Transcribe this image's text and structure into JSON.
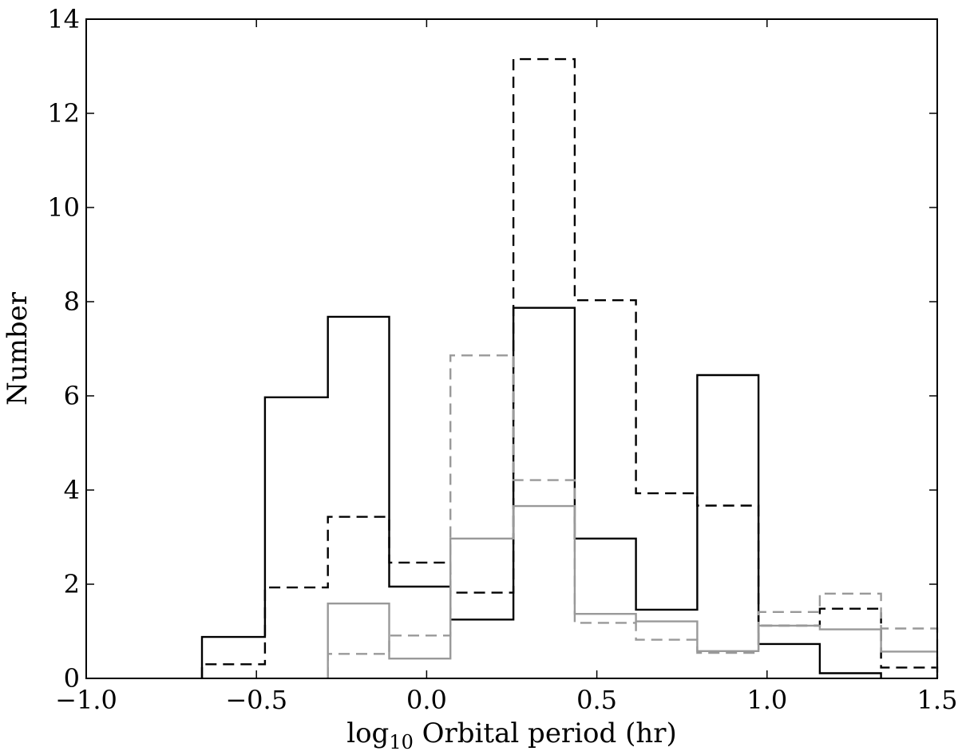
{
  "chart_data": {
    "type": "histogram",
    "xlabel": {
      "prefix": "log",
      "subscript": "10",
      "suffix": " Orbital period (hr)"
    },
    "ylabel": "Number",
    "xlim": [
      -1.0,
      1.5
    ],
    "ylim": [
      0,
      14
    ],
    "x_ticks": [
      -1.0,
      -0.5,
      0.0,
      0.5,
      1.0,
      1.5
    ],
    "x_tick_labels": [
      "−1.0",
      "−0.5",
      "0.0",
      "0.5",
      "1.0",
      "1.5"
    ],
    "y_ticks": [
      0,
      2,
      4,
      6,
      8,
      10,
      12,
      14
    ],
    "y_tick_labels": [
      "0",
      "2",
      "4",
      "6",
      "8",
      "10",
      "12",
      "14"
    ],
    "grid": false,
    "series": [
      {
        "color": "#000000",
        "style": "solid",
        "bin_edges": [
          -0.66,
          -0.475,
          -0.29,
          -0.11,
          0.07,
          0.255,
          0.435,
          0.615,
          0.795,
          0.975,
          1.155,
          1.335
        ],
        "values": [
          0.88,
          5.97,
          7.68,
          1.95,
          1.25,
          7.87,
          2.97,
          1.46,
          6.44,
          0.73,
          0.11
        ]
      },
      {
        "color": "#000000",
        "style": "dashed",
        "bin_edges": [
          -0.66,
          -0.475,
          -0.29,
          -0.11,
          0.07,
          0.255,
          0.435,
          0.615,
          0.795,
          0.975,
          1.155,
          1.335,
          1.5
        ],
        "values": [
          0.3,
          1.93,
          3.43,
          2.46,
          1.82,
          13.15,
          8.03,
          3.93,
          3.67,
          1.12,
          1.48,
          0.23
        ]
      },
      {
        "color": "#999999",
        "style": "solid",
        "bin_edges": [
          -0.29,
          -0.11,
          0.07,
          0.255,
          0.435,
          0.615,
          0.795,
          0.975,
          1.155,
          1.335,
          1.5
        ],
        "values": [
          1.59,
          0.42,
          2.97,
          3.66,
          1.37,
          1.21,
          0.58,
          1.12,
          1.04,
          0.57
        ]
      },
      {
        "color": "#999999",
        "style": "dashed",
        "bin_edges": [
          -0.29,
          -0.11,
          0.07,
          0.255,
          0.435,
          0.615,
          0.795,
          0.975,
          1.155,
          1.335,
          1.5
        ],
        "values": [
          0.52,
          0.91,
          6.86,
          4.21,
          1.18,
          0.82,
          0.54,
          1.41,
          1.8,
          1.06
        ]
      }
    ]
  }
}
